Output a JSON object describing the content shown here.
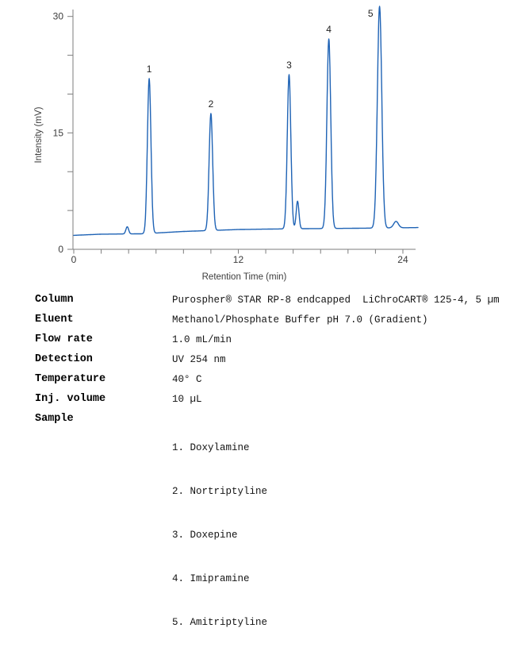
{
  "chart_data": {
    "type": "line",
    "title": "",
    "xlabel": "Retention Time (min)",
    "ylabel": "Intensity (mV)",
    "xlim": [
      0,
      25.1
    ],
    "ylim": [
      0,
      31.3
    ],
    "x_tick_step": 2,
    "x_ticks_labeled": [
      0,
      12,
      24
    ],
    "y_tick_step": 5,
    "y_ticks_labeled": [
      0,
      15,
      30
    ],
    "grid": false,
    "legend": "none",
    "line_color": "#1f63b5",
    "axis_color": "#7d7d7d",
    "text_color": "#3c3c3c",
    "baseline_points": [
      [
        0,
        1.8
      ],
      [
        2,
        1.95
      ],
      [
        5,
        2.0
      ],
      [
        8,
        2.3
      ],
      [
        12,
        2.55
      ],
      [
        16,
        2.65
      ],
      [
        20,
        2.7
      ],
      [
        25.1,
        2.8
      ]
    ],
    "peaks": [
      {
        "label": "1",
        "name": "Doxylamine",
        "rt_min": 5.5,
        "apex_mv": 22.0,
        "sigma_min": 0.13,
        "label_pos": "above"
      },
      {
        "label": "2",
        "name": "Nortriptyline",
        "rt_min": 10.0,
        "apex_mv": 17.5,
        "sigma_min": 0.13,
        "label_pos": "above"
      },
      {
        "label": "3",
        "name": "Doxepine",
        "rt_min": 15.7,
        "apex_mv": 22.5,
        "sigma_min": 0.13,
        "label_pos": "above"
      },
      {
        "label": "4",
        "name": "Imipramine",
        "rt_min": 18.6,
        "apex_mv": 27.1,
        "sigma_min": 0.14,
        "label_pos": "above"
      },
      {
        "label": "5",
        "name": "Amitriptyline",
        "rt_min": 22.3,
        "apex_mv": 31.3,
        "sigma_min": 0.16,
        "label_pos": "left"
      }
    ],
    "minor_features": [
      {
        "rt_min": 3.9,
        "apex_mv": 2.9,
        "sigma_min": 0.1
      },
      {
        "rt_min": 16.32,
        "apex_mv": 6.2,
        "sigma_min": 0.1
      },
      {
        "rt_min": 23.5,
        "apex_mv": 3.6,
        "sigma_min": 0.17
      }
    ]
  },
  "conditions": {
    "rows": [
      {
        "label": "Column",
        "value": "Purospher® STAR RP-8 endcapped  LiChroCART® 125-4, 5 µm"
      },
      {
        "label": "Eluent",
        "value": "Methanol/Phosphate Buffer pH 7.0 (Gradient)"
      },
      {
        "label": "Flow rate",
        "value": "1.0 mL/min"
      },
      {
        "label": "Detection",
        "value": "UV 254 nm"
      },
      {
        "label": "Temperature",
        "value": "40° C"
      },
      {
        "label": "Inj. volume",
        "value": "10 µL"
      }
    ],
    "sample": {
      "label": "Sample",
      "items": [
        "1. Doxylamine",
        "2. Nortriptyline",
        "3. Doxepine",
        "4. Imipramine",
        "5. Amitriptyline"
      ]
    }
  }
}
